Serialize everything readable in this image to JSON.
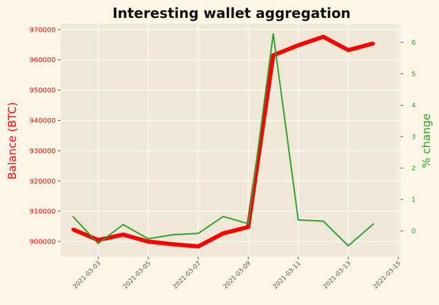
{
  "chart_data": {
    "type": "line",
    "title": "Interesting wallet aggregation",
    "xlabel": "",
    "ylabel_left": "Balance (BTC)",
    "ylabel_right": "% change",
    "x": [
      "2021-03-02",
      "2021-03-03",
      "2021-03-04",
      "2021-03-05",
      "2021-03-06",
      "2021-03-07",
      "2021-03-08",
      "2021-03-09",
      "2021-03-10",
      "2021-03-11",
      "2021-03-12",
      "2021-03-13",
      "2021-03-14"
    ],
    "x_ticks": [
      "2021-03-03",
      "2021-03-05",
      "2021-03-07",
      "2021-03-09",
      "2021-03-11",
      "2021-03-13",
      "2021-03-15"
    ],
    "xlim": [
      "2021-03-01T12:00",
      "2021-03-15T02:00"
    ],
    "series": [
      {
        "axis": "left",
        "color": "#ff0000",
        "values": [
          904000,
          900500,
          902300,
          900000,
          899100,
          898400,
          902700,
          904800,
          961500,
          964800,
          967600,
          963200,
          965400
        ]
      },
      {
        "axis": "right",
        "color": "#2ca02c",
        "values": [
          0.45,
          -0.4,
          0.2,
          -0.25,
          -0.12,
          -0.08,
          0.46,
          0.23,
          6.27,
          0.35,
          0.31,
          -0.47,
          0.22
        ]
      }
    ],
    "y_left": {
      "ylim": [
        895000,
        972000
      ],
      "ticks": [
        900000,
        910000,
        920000,
        930000,
        940000,
        950000,
        960000,
        970000
      ],
      "color": "#ff0000"
    },
    "y_right": {
      "ylim": [
        -0.82,
        6.6
      ],
      "ticks": [
        0,
        1,
        2,
        3,
        4,
        5,
        6
      ],
      "color": "#2ca02c"
    },
    "grid": true,
    "background": "#efe8d8",
    "figure_background": "#fdf5e5"
  }
}
